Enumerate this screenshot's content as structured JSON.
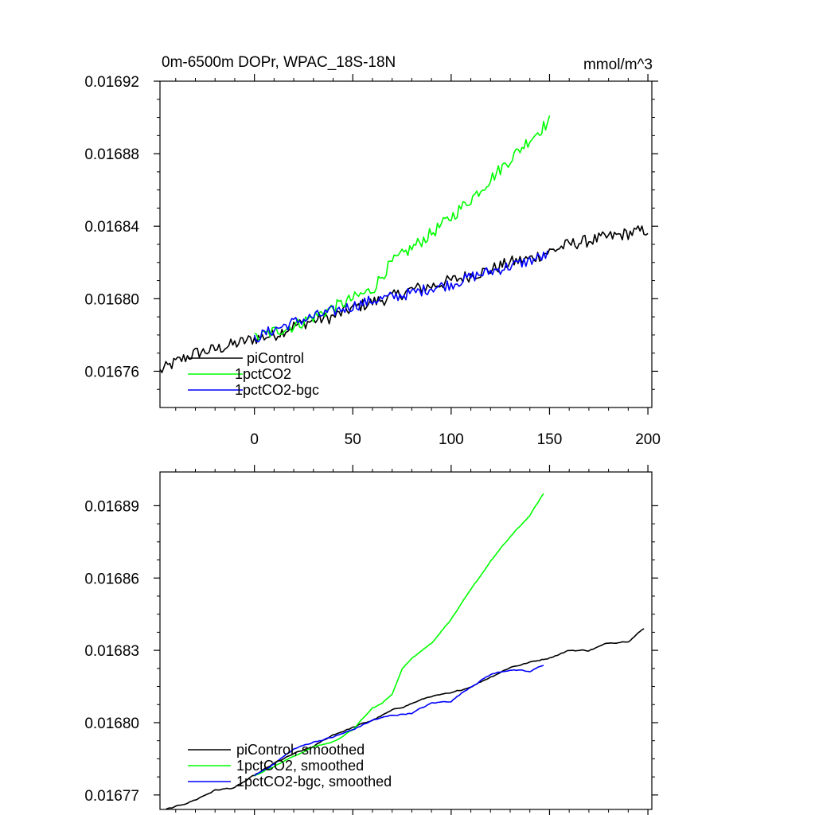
{
  "colors": {
    "piControl": "#000000",
    "1pctCO2": "#00ff00",
    "1pctCO2-bgc": "#0000ff",
    "axis": "#000000",
    "background": "#ffffff"
  },
  "chart_data": [
    {
      "type": "line",
      "title": "0m-6500m DOPr, WPAC_18S-18N",
      "units": "mmol/m^3",
      "xlim": [
        -48,
        202
      ],
      "ylim": [
        0.01674,
        0.01692
      ],
      "x_ticks": [
        0,
        50,
        100,
        150,
        200
      ],
      "x_tick_labels": [
        "0",
        "50",
        "100",
        "150",
        "200"
      ],
      "y_ticks": [
        0.01676,
        0.0168,
        0.01684,
        0.01688,
        0.01692
      ],
      "y_tick_labels": [
        "0.01676",
        "0.01680",
        "0.01684",
        "0.01688",
        "0.01692"
      ],
      "legend": {
        "position": "bottom-left",
        "entries": [
          "piControl",
          "1pctCO2",
          "1pctCO2-bgc"
        ]
      },
      "noise": [
        3.5e-06,
        3.5e-06,
        3.2e-06
      ],
      "series": [
        {
          "name": "piControl",
          "x": [
            -48,
            -40,
            -30,
            -20,
            -10,
            0,
            10,
            20,
            30,
            40,
            50,
            60,
            70,
            80,
            90,
            100,
            110,
            120,
            130,
            140,
            150,
            160,
            170,
            180,
            190,
            200
          ],
          "y": [
            0.01676,
            0.016765,
            0.01677,
            0.016772,
            0.016775,
            0.016778,
            0.01678,
            0.016785,
            0.016788,
            0.01679,
            0.016795,
            0.016798,
            0.016801,
            0.016805,
            0.016807,
            0.01681,
            0.016813,
            0.016816,
            0.01682,
            0.016822,
            0.016826,
            0.01683,
            0.016832,
            0.016834,
            0.016836,
            0.016838
          ]
        },
        {
          "name": "1pctCO2",
          "x": [
            0,
            10,
            20,
            30,
            40,
            50,
            60,
            65,
            70,
            80,
            90,
            100,
            110,
            120,
            130,
            140,
            150
          ],
          "y": [
            0.016778,
            0.016782,
            0.016785,
            0.01679,
            0.016795,
            0.0168,
            0.016805,
            0.016813,
            0.01682,
            0.016828,
            0.016836,
            0.016845,
            0.016855,
            0.016866,
            0.016877,
            0.016888,
            0.016898
          ]
        },
        {
          "name": "1pctCO2-bgc",
          "x": [
            0,
            10,
            20,
            30,
            40,
            50,
            60,
            70,
            80,
            90,
            100,
            110,
            120,
            130,
            140,
            149
          ],
          "y": [
            0.016778,
            0.016783,
            0.016787,
            0.01679,
            0.016793,
            0.016796,
            0.016799,
            0.016801,
            0.016803,
            0.016806,
            0.016808,
            0.016812,
            0.016815,
            0.016818,
            0.016821,
            0.016824
          ]
        }
      ]
    },
    {
      "type": "line",
      "title": "",
      "xlim": [
        -48,
        202
      ],
      "ylim": [
        0.016764,
        0.016904
      ],
      "x_ticks": [
        0,
        50,
        100,
        150,
        200
      ],
      "y_ticks": [
        0.01677,
        0.0168,
        0.01683,
        0.01686,
        0.01689
      ],
      "y_tick_labels": [
        "0.01677",
        "0.01680",
        "0.01683",
        "0.01686",
        "0.01689"
      ],
      "legend": {
        "position": "bottom-left",
        "entries": [
          "piControl, smoothed",
          "1pctCO2, smoothed",
          "1pctCO2-bgc, smoothed"
        ]
      },
      "noise": [
        8e-07,
        6e-07,
        8e-07
      ],
      "series": [
        {
          "name": "piControl, smoothed",
          "x": [
            -45,
            -40,
            -30,
            -20,
            -10,
            0,
            10,
            20,
            30,
            40,
            50,
            60,
            70,
            80,
            90,
            100,
            110,
            120,
            130,
            140,
            150,
            160,
            170,
            180,
            190,
            198
          ],
          "y": [
            0.016764,
            0.016765,
            0.016768,
            0.016772,
            0.016773,
            0.016778,
            0.016783,
            0.016787,
            0.01679,
            0.016795,
            0.016798,
            0.016801,
            0.016805,
            0.016808,
            0.016811,
            0.016812,
            0.016815,
            0.016819,
            0.016823,
            0.016825,
            0.016827,
            0.01683,
            0.01683,
            0.016833,
            0.016834,
            0.016839
          ]
        },
        {
          "name": "1pctCO2, smoothed",
          "x": [
            0,
            10,
            20,
            30,
            40,
            50,
            60,
            65,
            70,
            75,
            80,
            90,
            100,
            110,
            120,
            130,
            140,
            147
          ],
          "y": [
            0.016778,
            0.016782,
            0.016786,
            0.01679,
            0.016792,
            0.016797,
            0.016806,
            0.016808,
            0.016812,
            0.016822,
            0.016827,
            0.016833,
            0.016843,
            0.016855,
            0.016867,
            0.016877,
            0.016886,
            0.016895
          ]
        },
        {
          "name": "1pctCO2-bgc, smoothed",
          "x": [
            0,
            10,
            20,
            30,
            40,
            50,
            60,
            70,
            80,
            90,
            100,
            110,
            120,
            130,
            140,
            147
          ],
          "y": [
            0.016778,
            0.016783,
            0.016789,
            0.016792,
            0.016794,
            0.016797,
            0.016801,
            0.016803,
            0.016804,
            0.016808,
            0.016809,
            0.016815,
            0.01682,
            0.016822,
            0.016821,
            0.016824
          ]
        }
      ]
    }
  ]
}
